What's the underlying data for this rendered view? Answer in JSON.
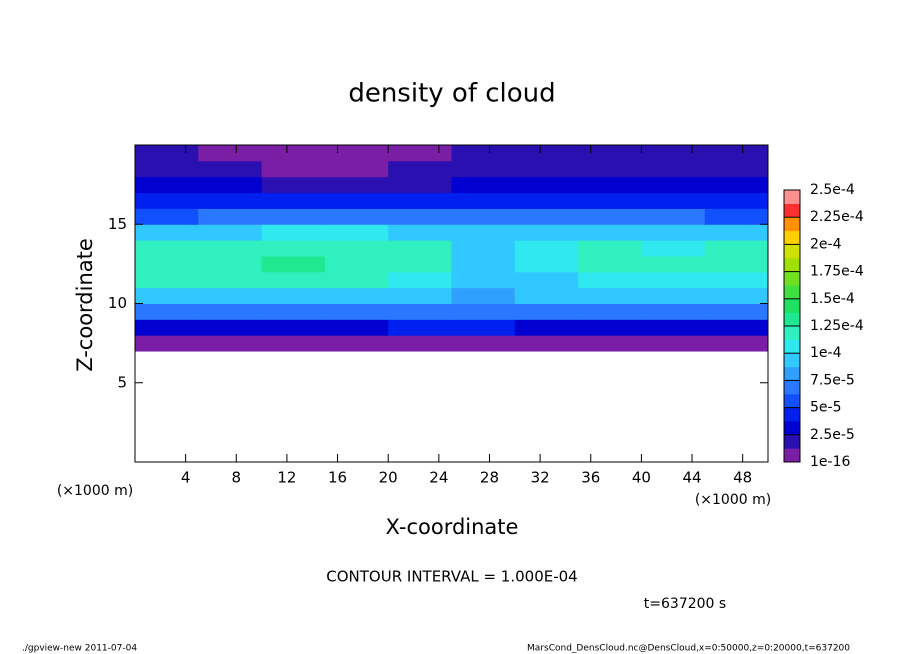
{
  "chart_data": {
    "type": "heatmap",
    "title": "density of cloud",
    "x_label": "X-coordinate",
    "y_label": "Z-coordinate",
    "x_unit": "(×1000 m)",
    "contour_note": "CONTOUR INTERVAL = 1.000E-04",
    "time_note": "t=637200 s",
    "footer_left": "./gpview-new  2011-07-04",
    "footer_right": "MarsCond_DensCloud.nc@DensCloud,x=0:50000,z=0:20000,t=637200",
    "xlim": [
      0,
      50
    ],
    "ylim": [
      0,
      20
    ],
    "xticks": [
      4,
      8,
      12,
      16,
      20,
      24,
      28,
      32,
      36,
      40,
      44,
      48
    ],
    "yticks": [
      5,
      10,
      15
    ],
    "x": [
      2.5,
      7.5,
      12.5,
      17.5,
      22.5,
      27.5,
      32.5,
      37.5,
      42.5,
      47.5
    ],
    "z": [
      0.5,
      1.5,
      2.5,
      3.5,
      4.5,
      5.5,
      6.5,
      7.5,
      8.5,
      9.5,
      10.5,
      11.5,
      12.5,
      13.5,
      14.5,
      15.5,
      16.5,
      17.5,
      18.5,
      19.5
    ],
    "values": [
      [
        null,
        null,
        null,
        null,
        null,
        null,
        null,
        null,
        null,
        null
      ],
      [
        null,
        null,
        null,
        null,
        null,
        null,
        null,
        null,
        null,
        null
      ],
      [
        null,
        null,
        null,
        null,
        null,
        null,
        null,
        null,
        null,
        null
      ],
      [
        null,
        null,
        null,
        null,
        null,
        null,
        null,
        null,
        null,
        null
      ],
      [
        null,
        null,
        null,
        null,
        null,
        null,
        null,
        null,
        null,
        null
      ],
      [
        null,
        null,
        null,
        null,
        null,
        null,
        null,
        null,
        null,
        null
      ],
      [
        null,
        null,
        null,
        null,
        null,
        null,
        null,
        null,
        null,
        null
      ],
      [
        8e-06,
        8e-06,
        8e-06,
        8e-06,
        8e-06,
        8e-06,
        8e-06,
        8e-06,
        8e-06,
        8e-06
      ],
      [
        3.5e-05,
        3.5e-05,
        3.5e-05,
        3.5e-05,
        4e-05,
        4.5e-05,
        3.5e-05,
        3.5e-05,
        3.5e-05,
        3.5e-05
      ],
      [
        6.5e-05,
        6.5e-05,
        6.5e-05,
        6.5e-05,
        7e-05,
        7.5e-05,
        7e-05,
        6.5e-05,
        6.5e-05,
        6.5e-05
      ],
      [
        9.5e-05,
        9.5e-05,
        9.5e-05,
        9.5e-05,
        9e-05,
        8.5e-05,
        9e-05,
        9.5e-05,
        9e-05,
        9e-05
      ],
      [
        0.000115,
        0.000115,
        0.000115,
        0.000115,
        0.00011,
        9e-05,
        0.0001,
        0.00011,
        0.000105,
        0.00011
      ],
      [
        0.000125,
        0.000125,
        0.00013,
        0.000125,
        0.000115,
        9.5e-05,
        0.000105,
        0.00012,
        0.000115,
        0.00012
      ],
      [
        0.00012,
        0.00012,
        0.000125,
        0.000125,
        0.000115,
        0.0001,
        0.00011,
        0.00012,
        0.00011,
        0.000115
      ],
      [
        9.5e-05,
        0.0001,
        0.000105,
        0.000105,
        0.0001,
        9.5e-05,
        9.5e-05,
        0.0001,
        9e-05,
        9.5e-05
      ],
      [
        6e-05,
        6.5e-05,
        7e-05,
        7e-05,
        6.5e-05,
        7e-05,
        7e-05,
        7e-05,
        6.5e-05,
        6e-05
      ],
      [
        4e-05,
        4.5e-05,
        4.5e-05,
        4.5e-05,
        4.5e-05,
        5e-05,
        5e-05,
        5e-05,
        4.5e-05,
        4e-05
      ],
      [
        3e-05,
        3e-05,
        2.5e-05,
        2e-05,
        2.5e-05,
        3e-05,
        3e-05,
        3e-05,
        3e-05,
        3e-05
      ],
      [
        2e-05,
        1.8e-05,
        1.2e-05,
        8e-06,
        1.5e-05,
        2e-05,
        2e-05,
        2e-05,
        2e-05,
        2e-05
      ],
      [
        1.5e-05,
        1e-05,
        8e-06,
        8e-06,
        1.2e-05,
        1.5e-05,
        1.5e-05,
        1.5e-05,
        1.5e-05,
        1.5e-05
      ]
    ],
    "clim": [
      1e-16,
      0.00025
    ],
    "cticks": [
      {
        "value": 1e-16,
        "label": "1e-16"
      },
      {
        "value": 2.5e-05,
        "label": "2.5e-5"
      },
      {
        "value": 5e-05,
        "label": "5e-5"
      },
      {
        "value": 7.5e-05,
        "label": "7.5e-5"
      },
      {
        "value": 0.0001,
        "label": "1e-4"
      },
      {
        "value": 0.000125,
        "label": "1.25e-4"
      },
      {
        "value": 0.00015,
        "label": "1.5e-4"
      },
      {
        "value": 0.000175,
        "label": "1.75e-4"
      },
      {
        "value": 0.0002,
        "label": "2e-4"
      },
      {
        "value": 0.000225,
        "label": "2.25e-4"
      },
      {
        "value": 0.00025,
        "label": "2.5e-4"
      }
    ],
    "colors": [
      "#7a1ea6",
      "#2a10b0",
      "#0000d0",
      "#0020f0",
      "#1050ff",
      "#2a78ff",
      "#30a0ff",
      "#30c8ff",
      "#30e8f0",
      "#30f0c0",
      "#20e890",
      "#20e060",
      "#40e040",
      "#70e020",
      "#a0e000",
      "#d0e000",
      "#ffd000",
      "#ff9000",
      "#ff3030",
      "#ff9090"
    ]
  }
}
